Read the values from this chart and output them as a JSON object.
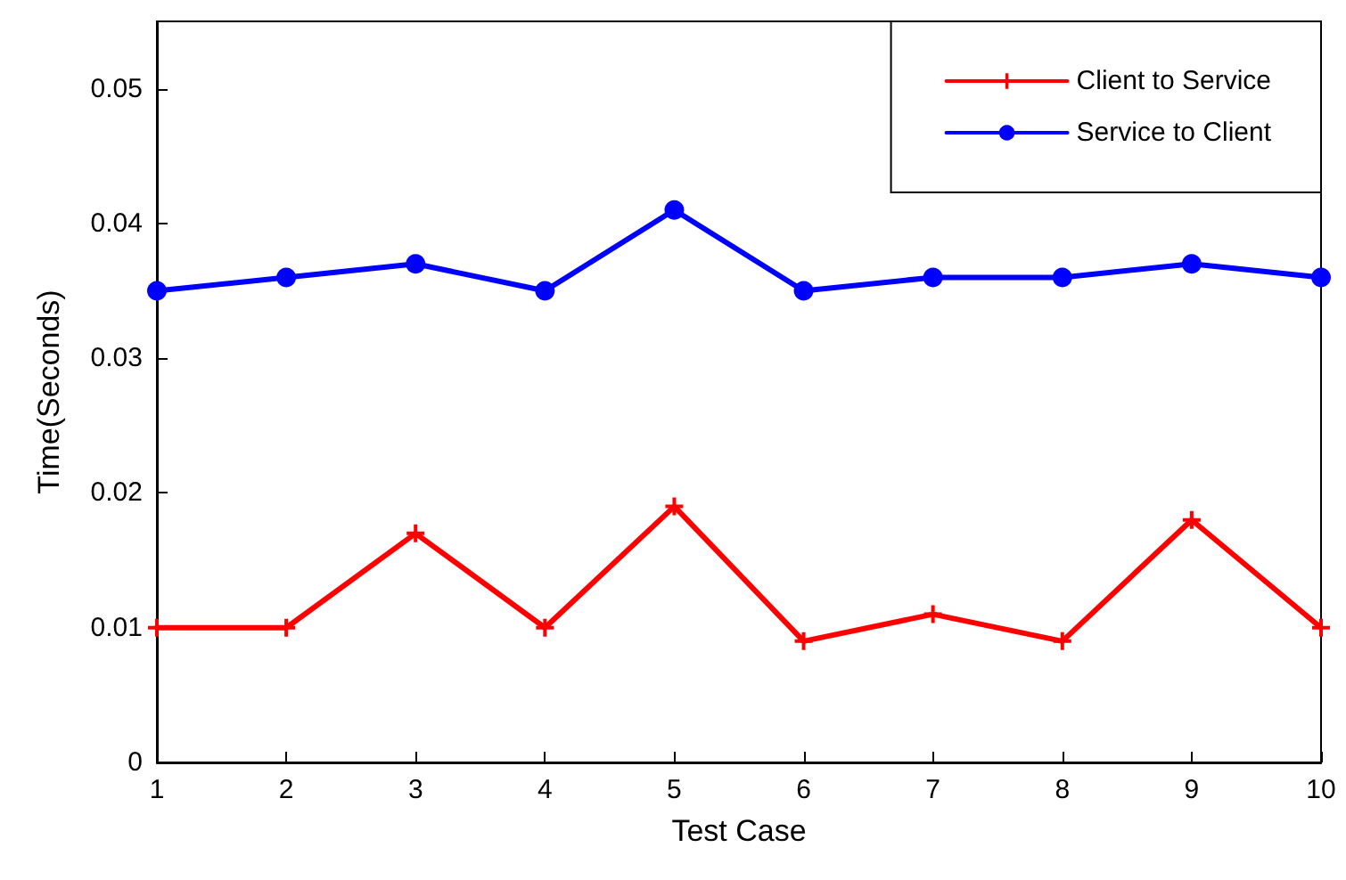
{
  "chart_data": {
    "type": "line",
    "xlabel": "Test Case",
    "ylabel": "Time(Seconds)",
    "x": [
      1,
      2,
      3,
      4,
      5,
      6,
      7,
      8,
      9,
      10
    ],
    "series": [
      {
        "name": "Client to Service",
        "color": "#ff0000",
        "marker": "cross",
        "values": [
          0.01,
          0.01,
          0.017,
          0.01,
          0.019,
          0.009,
          0.011,
          0.009,
          0.018,
          0.01
        ]
      },
      {
        "name": "Service to Client",
        "color": "#0000ff",
        "marker": "circle",
        "values": [
          0.035,
          0.036,
          0.037,
          0.035,
          0.041,
          0.035,
          0.036,
          0.036,
          0.037,
          0.036
        ]
      }
    ],
    "xlim": [
      1,
      10
    ],
    "xticks": [
      1,
      2,
      3,
      4,
      5,
      6,
      7,
      8,
      9,
      10
    ],
    "ylim": [
      0,
      0.055
    ],
    "yticks": [
      0,
      0.01,
      0.02,
      0.03,
      0.04,
      0.05
    ],
    "grid": false,
    "legend": "top right",
    "line_style": "solid"
  }
}
